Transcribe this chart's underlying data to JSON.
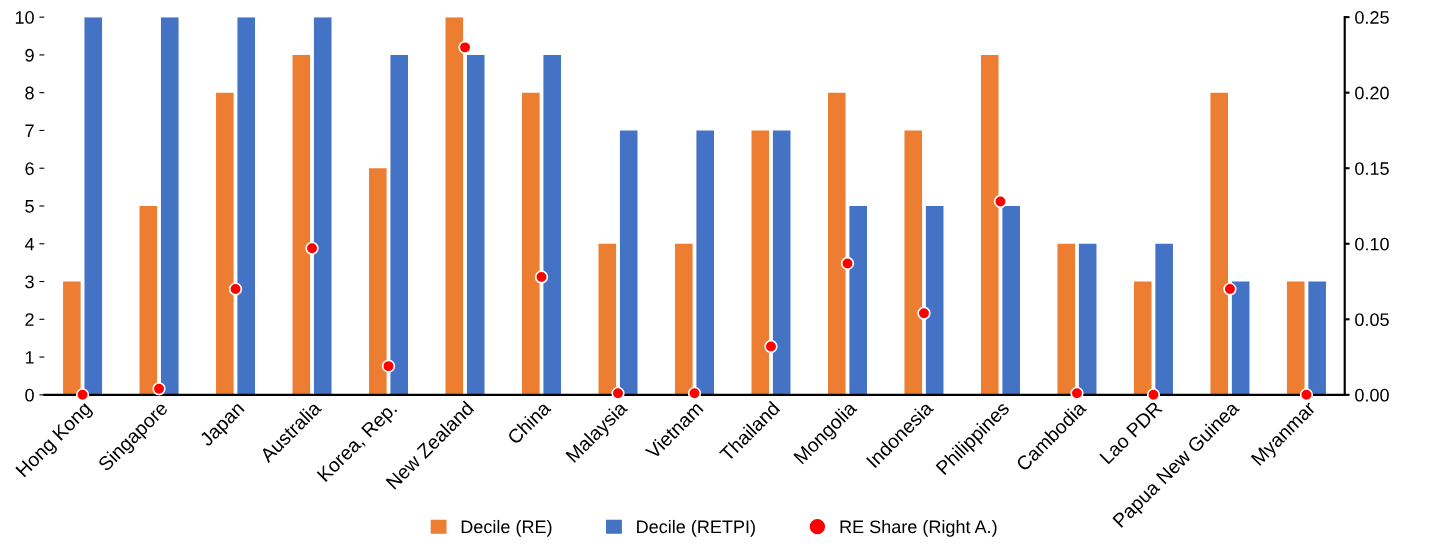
{
  "chart_data": {
    "type": "bar",
    "categories": [
      "Hong Kong",
      "Singapore",
      "Japan",
      "Australia",
      "Korea, Rep.",
      "New Zealand",
      "China",
      "Malaysia",
      "Vietnam",
      "Thailand",
      "Mongolia",
      "Indonesia",
      "Philippines",
      "Cambodia",
      "Lao PDR",
      "Papua New Guinea",
      "Myanmar"
    ],
    "series": [
      {
        "name": "Decile (RE)",
        "color": "#ed7d31",
        "values": [
          3,
          5,
          8,
          9,
          6,
          10,
          8,
          4,
          4,
          7,
          8,
          7,
          9,
          4,
          3,
          8,
          3
        ]
      },
      {
        "name": "Decile (RETPI)",
        "color": "#4472c4",
        "values": [
          10,
          10,
          10,
          10,
          9,
          9,
          9,
          7,
          7,
          7,
          5,
          5,
          5,
          4,
          4,
          3,
          3
        ]
      },
      {
        "name": "RE Share (Right A.)",
        "color": "#ff0000",
        "type": "scatter",
        "axis": "y2",
        "marker": "circle",
        "values": [
          0.0,
          0.004,
          0.07,
          0.097,
          0.019,
          0.23,
          0.078,
          0.001,
          0.001,
          0.032,
          0.087,
          0.054,
          0.128,
          0.001,
          0.0,
          0.07,
          0.0
        ]
      }
    ],
    "ylim": [
      0,
      10
    ],
    "yticks": [
      0,
      1,
      2,
      3,
      4,
      5,
      6,
      7,
      8,
      9,
      10
    ],
    "y2lim": [
      0,
      0.25
    ],
    "y2ticks": [
      {
        "value": 0,
        "label": "0.00"
      },
      {
        "value": 0.05,
        "label": "0.05"
      },
      {
        "value": 0.1,
        "label": "0.10"
      },
      {
        "value": 0.15,
        "label": "0.15"
      },
      {
        "value": 0.2,
        "label": "0.20"
      },
      {
        "value": 0.25,
        "label": "0.25"
      }
    ],
    "grid": false,
    "legend": "bottom"
  }
}
